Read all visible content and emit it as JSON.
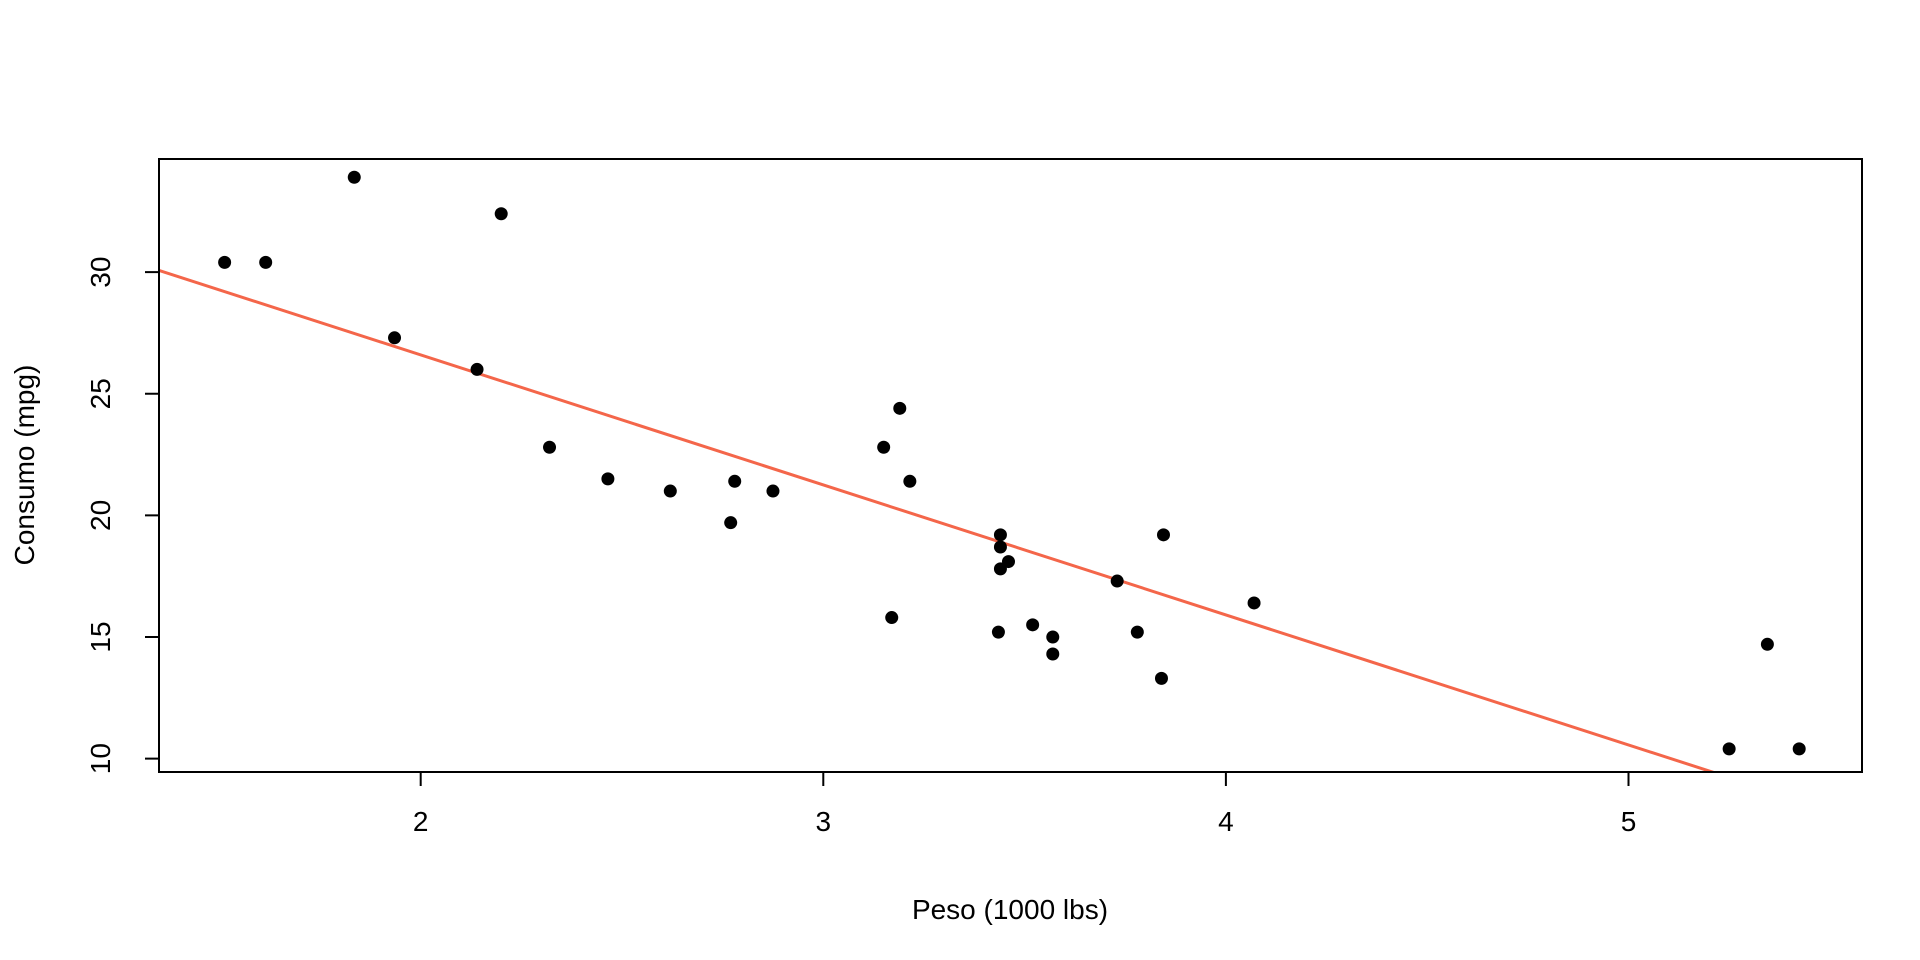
{
  "chart_data": {
    "type": "scatter",
    "title": "",
    "xlabel": "Peso (1000 lbs)",
    "ylabel": "Consumo (mpg)",
    "xlim": [
      1.35,
      5.58
    ],
    "ylim": [
      9.45,
      34.65
    ],
    "x_ticks": [
      2,
      3,
      4,
      5
    ],
    "x_tick_labels": [
      "2",
      "3",
      "4",
      "5"
    ],
    "y_ticks": [
      10,
      15,
      20,
      25,
      30
    ],
    "y_tick_labels": [
      "10",
      "15",
      "20",
      "25",
      "30"
    ],
    "grid": false,
    "legend": "none",
    "point_color": "#000000",
    "line_color": "#F4664A",
    "points": [
      {
        "x": 2.62,
        "y": 21.0
      },
      {
        "x": 2.875,
        "y": 21.0
      },
      {
        "x": 2.32,
        "y": 22.8
      },
      {
        "x": 3.215,
        "y": 21.4
      },
      {
        "x": 3.44,
        "y": 18.7
      },
      {
        "x": 3.46,
        "y": 18.1
      },
      {
        "x": 3.57,
        "y": 14.3
      },
      {
        "x": 3.19,
        "y": 24.4
      },
      {
        "x": 3.15,
        "y": 22.8
      },
      {
        "x": 3.44,
        "y": 19.2
      },
      {
        "x": 3.44,
        "y": 17.8
      },
      {
        "x": 4.07,
        "y": 16.4
      },
      {
        "x": 3.73,
        "y": 17.3
      },
      {
        "x": 3.78,
        "y": 15.2
      },
      {
        "x": 5.25,
        "y": 10.4
      },
      {
        "x": 5.424,
        "y": 10.4
      },
      {
        "x": 5.345,
        "y": 14.7
      },
      {
        "x": 2.2,
        "y": 32.4
      },
      {
        "x": 1.615,
        "y": 30.4
      },
      {
        "x": 1.835,
        "y": 33.9
      },
      {
        "x": 2.465,
        "y": 21.5
      },
      {
        "x": 3.52,
        "y": 15.5
      },
      {
        "x": 3.435,
        "y": 15.2
      },
      {
        "x": 3.84,
        "y": 13.3
      },
      {
        "x": 3.845,
        "y": 19.2
      },
      {
        "x": 1.935,
        "y": 27.3
      },
      {
        "x": 2.14,
        "y": 26.0
      },
      {
        "x": 1.513,
        "y": 30.4
      },
      {
        "x": 3.17,
        "y": 15.8
      },
      {
        "x": 2.77,
        "y": 19.7
      },
      {
        "x": 3.57,
        "y": 15.0
      },
      {
        "x": 2.78,
        "y": 21.4
      }
    ],
    "regression_line": {
      "intercept": 37.2851,
      "slope": -5.3445
    }
  }
}
